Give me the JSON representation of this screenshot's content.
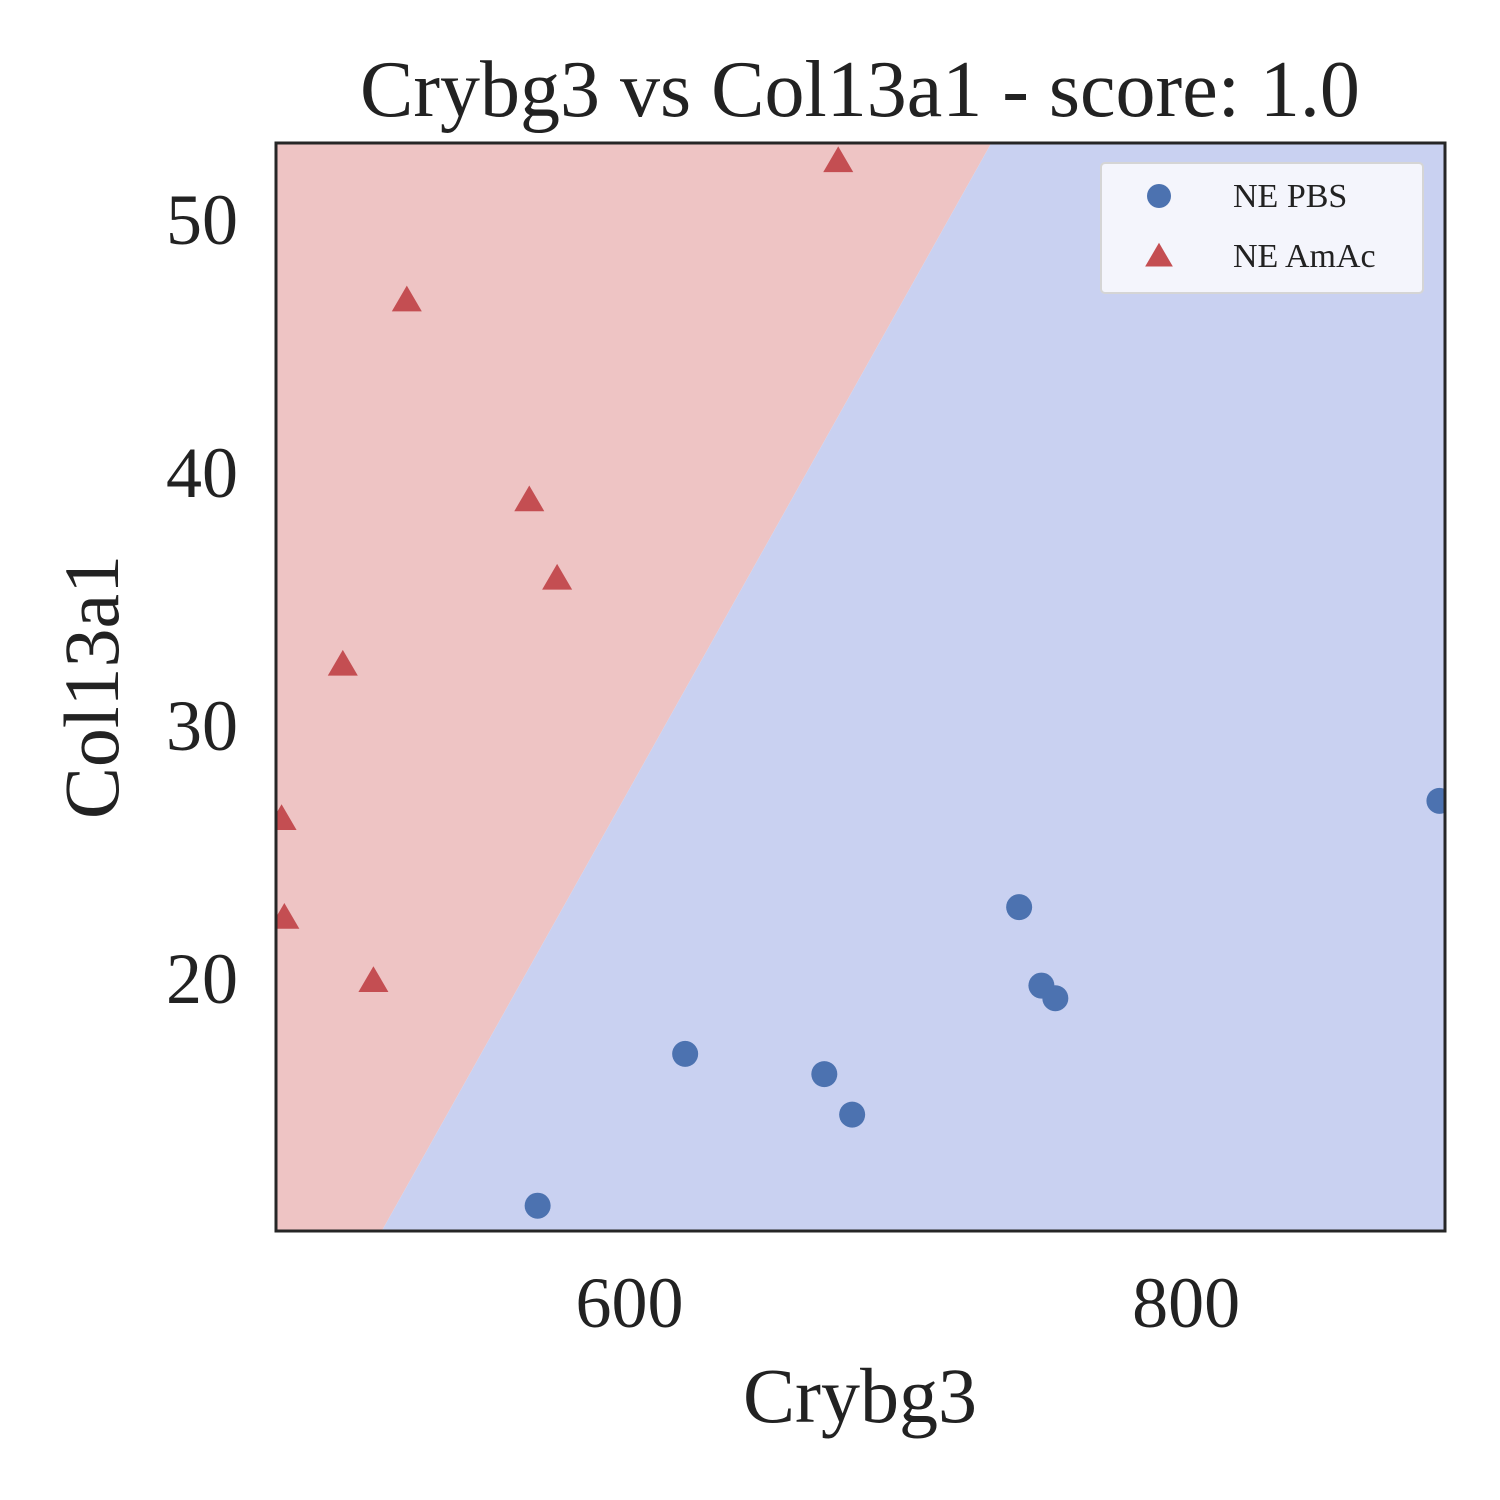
{
  "chart_data": {
    "type": "scatter",
    "title": "Crybg3 vs Col13a1 - score: 1.0",
    "xlabel": "Crybg3",
    "ylabel": "Col13a1",
    "xlim": [
      473,
      893
    ],
    "ylim": [
      10,
      53
    ],
    "xticks": [
      600,
      800
    ],
    "yticks": [
      20,
      30,
      40,
      50
    ],
    "grid": false,
    "legend_position": "top-right",
    "decision_boundary": {
      "points": [
        [
          511,
          10
        ],
        [
          730,
          53
        ]
      ]
    },
    "regions": [
      {
        "class": "NE AmAc",
        "side": "left",
        "color": "#eec4c4"
      },
      {
        "class": "NE PBS",
        "side": "right",
        "color": "#c9d1f1"
      }
    ],
    "series": [
      {
        "name": "NE PBS",
        "marker": "circle",
        "color": "#4c72b0",
        "points": [
          [
            567,
            11.0
          ],
          [
            620,
            17.0
          ],
          [
            670,
            16.2
          ],
          [
            680,
            14.6
          ],
          [
            740,
            22.8
          ],
          [
            748,
            19.7
          ],
          [
            753,
            19.2
          ],
          [
            891,
            27.0
          ]
        ]
      },
      {
        "name": "NE AmAc",
        "marker": "triangle",
        "color": "#c44e52",
        "points": [
          [
            675,
            52.3
          ],
          [
            520,
            46.8
          ],
          [
            564,
            38.9
          ],
          [
            574,
            35.8
          ],
          [
            497,
            32.4
          ],
          [
            475,
            26.3
          ],
          [
            476,
            22.4
          ],
          [
            508,
            19.9
          ]
        ]
      }
    ]
  }
}
